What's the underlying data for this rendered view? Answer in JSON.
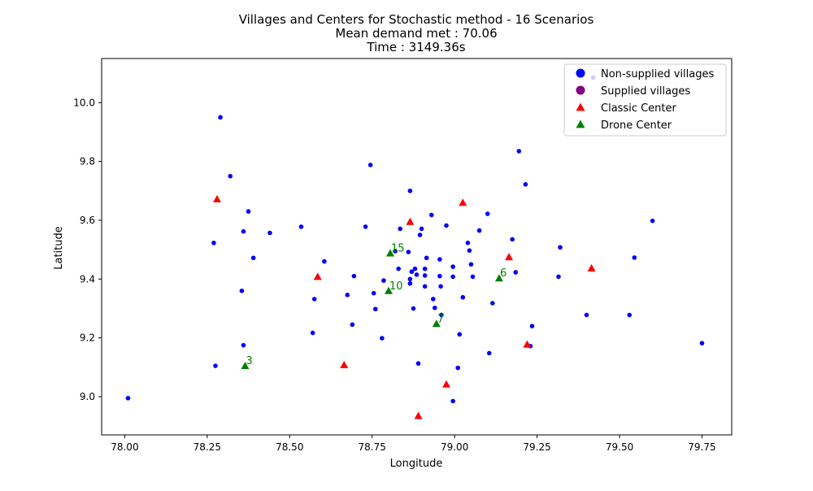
{
  "chart_data": {
    "type": "scatter",
    "title_lines": [
      "Villages and Centers for Stochastic method - 16 Scenarios",
      "Mean demand met : 70.06",
      "Time : 3149.36s"
    ],
    "xlabel": "Longitude",
    "ylabel": "Latitude",
    "xlim": [
      77.93,
      79.84
    ],
    "ylim": [
      8.87,
      10.15
    ],
    "xticks": [
      "78.00",
      "78.25",
      "78.50",
      "78.75",
      "79.00",
      "79.25",
      "79.50",
      "79.75"
    ],
    "yticks": [
      "9.0",
      "9.2",
      "9.4",
      "9.6",
      "9.8",
      "10.0"
    ],
    "legend_position": "top-right",
    "colors": {
      "non_supplied": "#0000ff",
      "supplied": "#800080",
      "classic_center": "#ff0000",
      "drone_center": "#008000"
    },
    "series": [
      {
        "name": "Non-supplied villages",
        "marker": "circle",
        "color_key": "non_supplied",
        "points": [
          [
            78.01,
            8.995
          ],
          [
            78.275,
            9.105
          ],
          [
            78.27,
            9.523
          ],
          [
            78.29,
            9.95
          ],
          [
            78.32,
            9.75
          ],
          [
            78.355,
            9.36
          ],
          [
            78.36,
            9.175
          ],
          [
            78.36,
            9.562
          ],
          [
            78.375,
            9.63
          ],
          [
            78.39,
            9.472
          ],
          [
            78.44,
            9.557
          ],
          [
            78.535,
            9.578
          ],
          [
            78.57,
            9.217
          ],
          [
            78.575,
            9.332
          ],
          [
            78.605,
            9.46
          ],
          [
            78.675,
            9.346
          ],
          [
            78.69,
            9.245
          ],
          [
            78.695,
            9.41
          ],
          [
            78.73,
            9.578
          ],
          [
            78.745,
            9.788
          ],
          [
            78.755,
            9.352
          ],
          [
            78.76,
            9.298
          ],
          [
            78.78,
            9.199
          ],
          [
            78.785,
            9.395
          ],
          [
            78.82,
            9.495
          ],
          [
            78.83,
            9.435
          ],
          [
            78.835,
            9.571
          ],
          [
            78.86,
            9.492
          ],
          [
            78.865,
            9.4
          ],
          [
            78.865,
            9.385
          ],
          [
            78.865,
            9.7
          ],
          [
            78.87,
            9.425
          ],
          [
            78.875,
            9.3
          ],
          [
            78.88,
            9.435
          ],
          [
            78.885,
            9.415
          ],
          [
            78.89,
            9.113
          ],
          [
            78.895,
            9.55
          ],
          [
            78.9,
            9.571
          ],
          [
            78.91,
            9.435
          ],
          [
            78.91,
            9.412
          ],
          [
            78.91,
            9.375
          ],
          [
            78.915,
            9.472
          ],
          [
            78.93,
            9.618
          ],
          [
            78.935,
            9.332
          ],
          [
            78.94,
            9.302
          ],
          [
            78.955,
            9.467
          ],
          [
            78.955,
            9.41
          ],
          [
            78.958,
            9.375
          ],
          [
            78.96,
            9.278
          ],
          [
            78.975,
            9.582
          ],
          [
            78.995,
            8.985
          ],
          [
            78.995,
            9.442
          ],
          [
            78.995,
            9.408
          ],
          [
            79.01,
            9.098
          ],
          [
            79.015,
            9.212
          ],
          [
            79.025,
            9.338
          ],
          [
            79.04,
            9.523
          ],
          [
            79.045,
            9.497
          ],
          [
            79.05,
            9.45
          ],
          [
            79.055,
            9.408
          ],
          [
            79.075,
            9.565
          ],
          [
            79.1,
            9.622
          ],
          [
            79.105,
            9.148
          ],
          [
            79.115,
            9.318
          ],
          [
            79.175,
            9.535
          ],
          [
            79.185,
            9.423
          ],
          [
            79.195,
            9.835
          ],
          [
            79.215,
            9.722
          ],
          [
            79.23,
            9.172
          ],
          [
            79.235,
            9.24
          ],
          [
            79.315,
            9.408
          ],
          [
            79.32,
            9.508
          ],
          [
            79.4,
            9.278
          ],
          [
            79.42,
            10.085
          ],
          [
            79.53,
            9.278
          ],
          [
            79.545,
            9.473
          ],
          [
            79.6,
            9.598
          ],
          [
            79.75,
            9.182
          ]
        ]
      },
      {
        "name": "Supplied villages",
        "marker": "circle",
        "color_key": "supplied",
        "points": []
      },
      {
        "name": "Classic Center",
        "marker": "triangle",
        "color_key": "classic_center",
        "points": [
          [
            78.28,
            9.672
          ],
          [
            78.585,
            9.408
          ],
          [
            78.665,
            9.108
          ],
          [
            78.865,
            9.595
          ],
          [
            78.89,
            8.935
          ],
          [
            78.975,
            9.042
          ],
          [
            79.025,
            9.66
          ],
          [
            79.165,
            9.475
          ],
          [
            79.22,
            9.178
          ],
          [
            79.415,
            9.437
          ]
        ]
      },
      {
        "name": "Drone Center",
        "marker": "triangle",
        "color_key": "drone_center",
        "points": [
          [
            78.365,
            9.105
          ],
          [
            78.805,
            9.488
          ],
          [
            78.8,
            9.36
          ],
          [
            78.945,
            9.248
          ],
          [
            79.135,
            9.403
          ]
        ],
        "labels": [
          "3",
          "15",
          "10",
          "7",
          "6"
        ]
      }
    ]
  }
}
